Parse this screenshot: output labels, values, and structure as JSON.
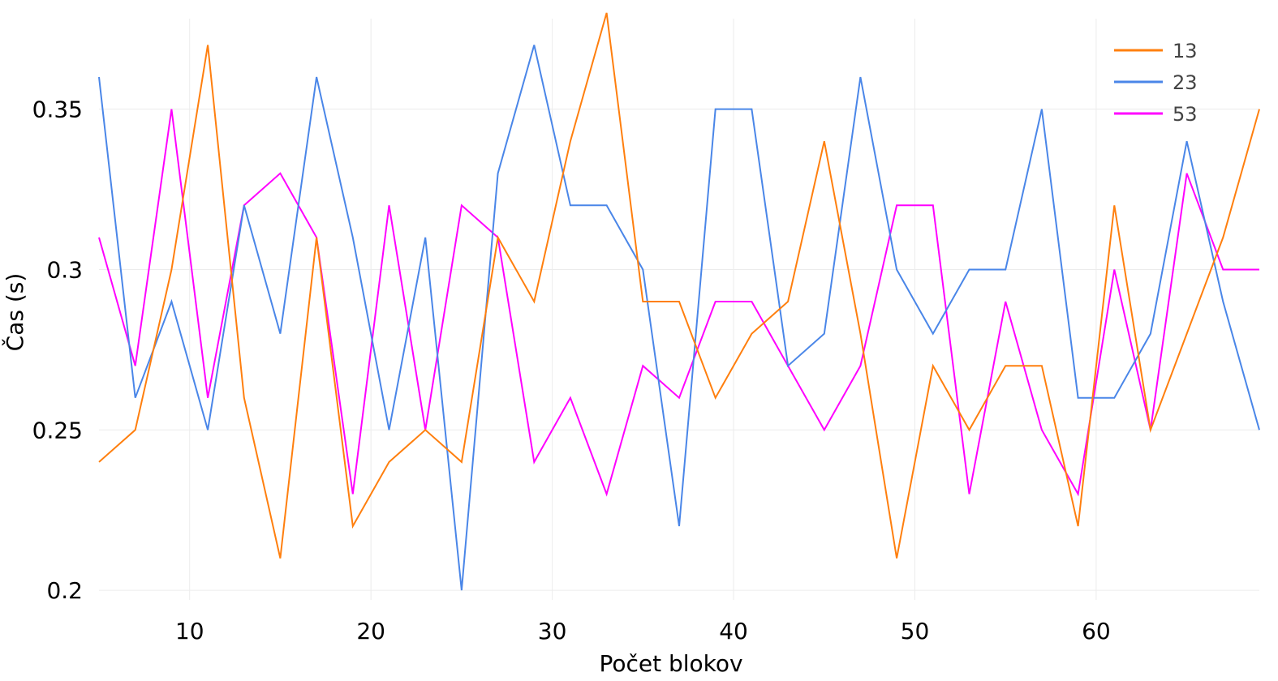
{
  "chart_data": {
    "type": "line",
    "title": "",
    "xlabel": "Počet blokov",
    "ylabel": "Čas (s)",
    "xlim": [
      5,
      69
    ],
    "ylim": [
      0.197,
      0.382
    ],
    "grid": true,
    "legend_position": "top-right",
    "x_ticks": [
      {
        "value": 10,
        "label": "10"
      },
      {
        "value": 20,
        "label": "20"
      },
      {
        "value": 30,
        "label": "30"
      },
      {
        "value": 40,
        "label": "40"
      },
      {
        "value": 50,
        "label": "50"
      },
      {
        "value": 60,
        "label": "60"
      }
    ],
    "y_ticks": [
      {
        "value": 0.2,
        "label": "0.2"
      },
      {
        "value": 0.25,
        "label": "0.25"
      },
      {
        "value": 0.3,
        "label": "0.3"
      },
      {
        "value": 0.35,
        "label": "0.35"
      }
    ],
    "x": [
      5,
      7,
      9,
      11,
      13,
      15,
      17,
      19,
      21,
      23,
      25,
      27,
      29,
      31,
      33,
      35,
      37,
      39,
      41,
      43,
      45,
      47,
      49,
      51,
      53,
      55,
      57,
      59,
      61,
      63,
      65,
      67,
      69
    ],
    "series": [
      {
        "name": "13",
        "color": "#ff7f0e",
        "values": [
          0.24,
          0.25,
          0.3,
          0.37,
          0.26,
          0.21,
          0.31,
          0.22,
          0.24,
          0.25,
          0.24,
          0.31,
          0.29,
          0.34,
          0.38,
          0.29,
          0.29,
          0.26,
          0.28,
          0.29,
          0.34,
          0.28,
          0.21,
          0.27,
          0.25,
          0.27,
          0.27,
          0.22,
          0.32,
          0.25,
          0.28,
          0.31,
          0.35
        ]
      },
      {
        "name": "23",
        "color": "#4a86e8",
        "values": [
          0.36,
          0.26,
          0.29,
          0.25,
          0.32,
          0.28,
          0.36,
          0.31,
          0.25,
          0.31,
          0.2,
          0.33,
          0.37,
          0.32,
          0.32,
          0.3,
          0.22,
          0.35,
          0.35,
          0.27,
          0.28,
          0.36,
          0.3,
          0.28,
          0.3,
          0.3,
          0.35,
          0.26,
          0.26,
          0.28,
          0.34,
          0.29,
          0.25
        ]
      },
      {
        "name": "53",
        "color": "#ff00ff",
        "values": [
          0.31,
          0.27,
          0.35,
          0.26,
          0.32,
          0.33,
          0.31,
          0.23,
          0.32,
          0.25,
          0.32,
          0.31,
          0.24,
          0.26,
          0.23,
          0.27,
          0.26,
          0.29,
          0.29,
          0.27,
          0.25,
          0.27,
          0.32,
          0.32,
          0.23,
          0.29,
          0.25,
          0.23,
          0.3,
          0.25,
          0.33,
          0.3,
          0.3
        ]
      }
    ]
  }
}
